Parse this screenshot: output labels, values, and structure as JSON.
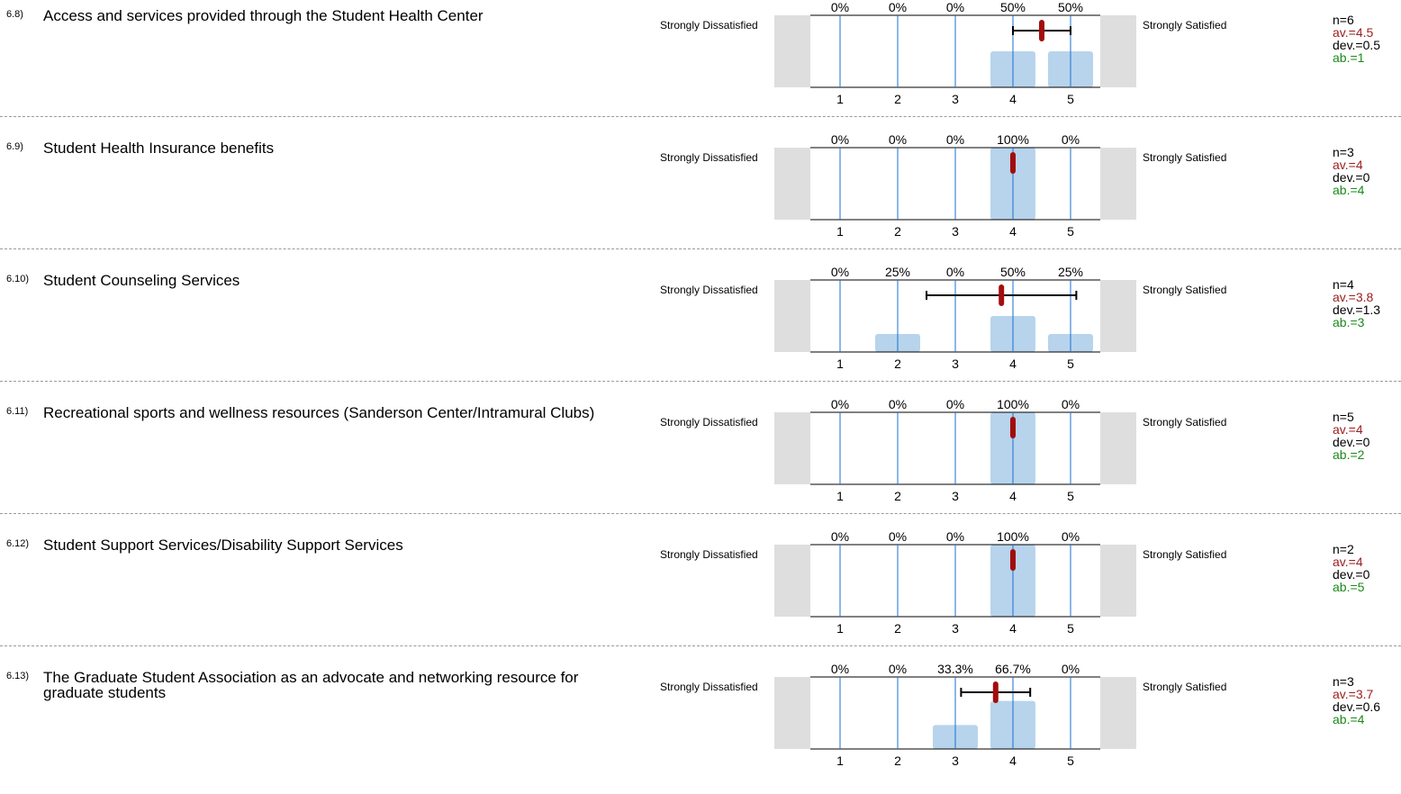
{
  "scale": {
    "left_label": "Strongly Dissatisfied",
    "right_label": "Strongly Satisfied",
    "ticks": [
      "1",
      "2",
      "3",
      "4",
      "5"
    ]
  },
  "colors": {
    "bar": "#b7d4ec",
    "gridline": "#1a6fd0",
    "side_box": "#dedede",
    "mean_marker": "#a30d0d",
    "av_text": "#9b1c1c",
    "ab_text": "#1a8a1a"
  },
  "chart_data": [
    {
      "type": "bar",
      "title": "Access and services provided through the Student Health Center",
      "number": "6.8)",
      "categories": [
        "1",
        "2",
        "3",
        "4",
        "5"
      ],
      "values": [
        0,
        0,
        0,
        50,
        50
      ],
      "value_labels": [
        "0%",
        "0%",
        "0%",
        "50%",
        "50%"
      ],
      "mean": 4.5,
      "dev": 0.5,
      "ylim": [
        0,
        100
      ],
      "stats": {
        "n": "n=6",
        "av": "av.=4.5",
        "dev": "dev.=0.5",
        "ab": "ab.=1"
      }
    },
    {
      "type": "bar",
      "title": "Student Health Insurance benefits",
      "number": "6.9)",
      "categories": [
        "1",
        "2",
        "3",
        "4",
        "5"
      ],
      "values": [
        0,
        0,
        0,
        100,
        0
      ],
      "value_labels": [
        "0%",
        "0%",
        "0%",
        "100%",
        "0%"
      ],
      "mean": 4,
      "dev": 0,
      "ylim": [
        0,
        100
      ],
      "stats": {
        "n": "n=3",
        "av": "av.=4",
        "dev": "dev.=0",
        "ab": "ab.=4"
      }
    },
    {
      "type": "bar",
      "title": "Student Counseling Services",
      "number": "6.10)",
      "categories": [
        "1",
        "2",
        "3",
        "4",
        "5"
      ],
      "values": [
        0,
        25,
        0,
        50,
        25
      ],
      "value_labels": [
        "0%",
        "25%",
        "0%",
        "50%",
        "25%"
      ],
      "mean": 3.8,
      "dev": 1.3,
      "ylim": [
        0,
        100
      ],
      "stats": {
        "n": "n=4",
        "av": "av.=3.8",
        "dev": "dev.=1.3",
        "ab": "ab.=3"
      }
    },
    {
      "type": "bar",
      "title": "Recreational sports and wellness resources (Sanderson Center/Intramural Clubs)",
      "number": "6.11)",
      "categories": [
        "1",
        "2",
        "3",
        "4",
        "5"
      ],
      "values": [
        0,
        0,
        0,
        100,
        0
      ],
      "value_labels": [
        "0%",
        "0%",
        "0%",
        "100%",
        "0%"
      ],
      "mean": 4,
      "dev": 0,
      "ylim": [
        0,
        100
      ],
      "stats": {
        "n": "n=5",
        "av": "av.=4",
        "dev": "dev.=0",
        "ab": "ab.=2"
      }
    },
    {
      "type": "bar",
      "title": "Student Support Services/Disability Support Services",
      "number": "6.12)",
      "categories": [
        "1",
        "2",
        "3",
        "4",
        "5"
      ],
      "values": [
        0,
        0,
        0,
        100,
        0
      ],
      "value_labels": [
        "0%",
        "0%",
        "0%",
        "100%",
        "0%"
      ],
      "mean": 4,
      "dev": 0,
      "ylim": [
        0,
        100
      ],
      "stats": {
        "n": "n=2",
        "av": "av.=4",
        "dev": "dev.=0",
        "ab": "ab.=5"
      }
    },
    {
      "type": "bar",
      "title": "The Graduate Student Association as an advocate and networking resource for graduate students",
      "number": "6.13)",
      "categories": [
        "1",
        "2",
        "3",
        "4",
        "5"
      ],
      "values": [
        0,
        0,
        33.3,
        66.7,
        0
      ],
      "value_labels": [
        "0%",
        "0%",
        "33.3%",
        "66.7%",
        "0%"
      ],
      "mean": 3.7,
      "dev": 0.6,
      "ylim": [
        0,
        100
      ],
      "stats": {
        "n": "n=3",
        "av": "av.=3.7",
        "dev": "dev.=0.6",
        "ab": "ab.=4"
      }
    }
  ]
}
